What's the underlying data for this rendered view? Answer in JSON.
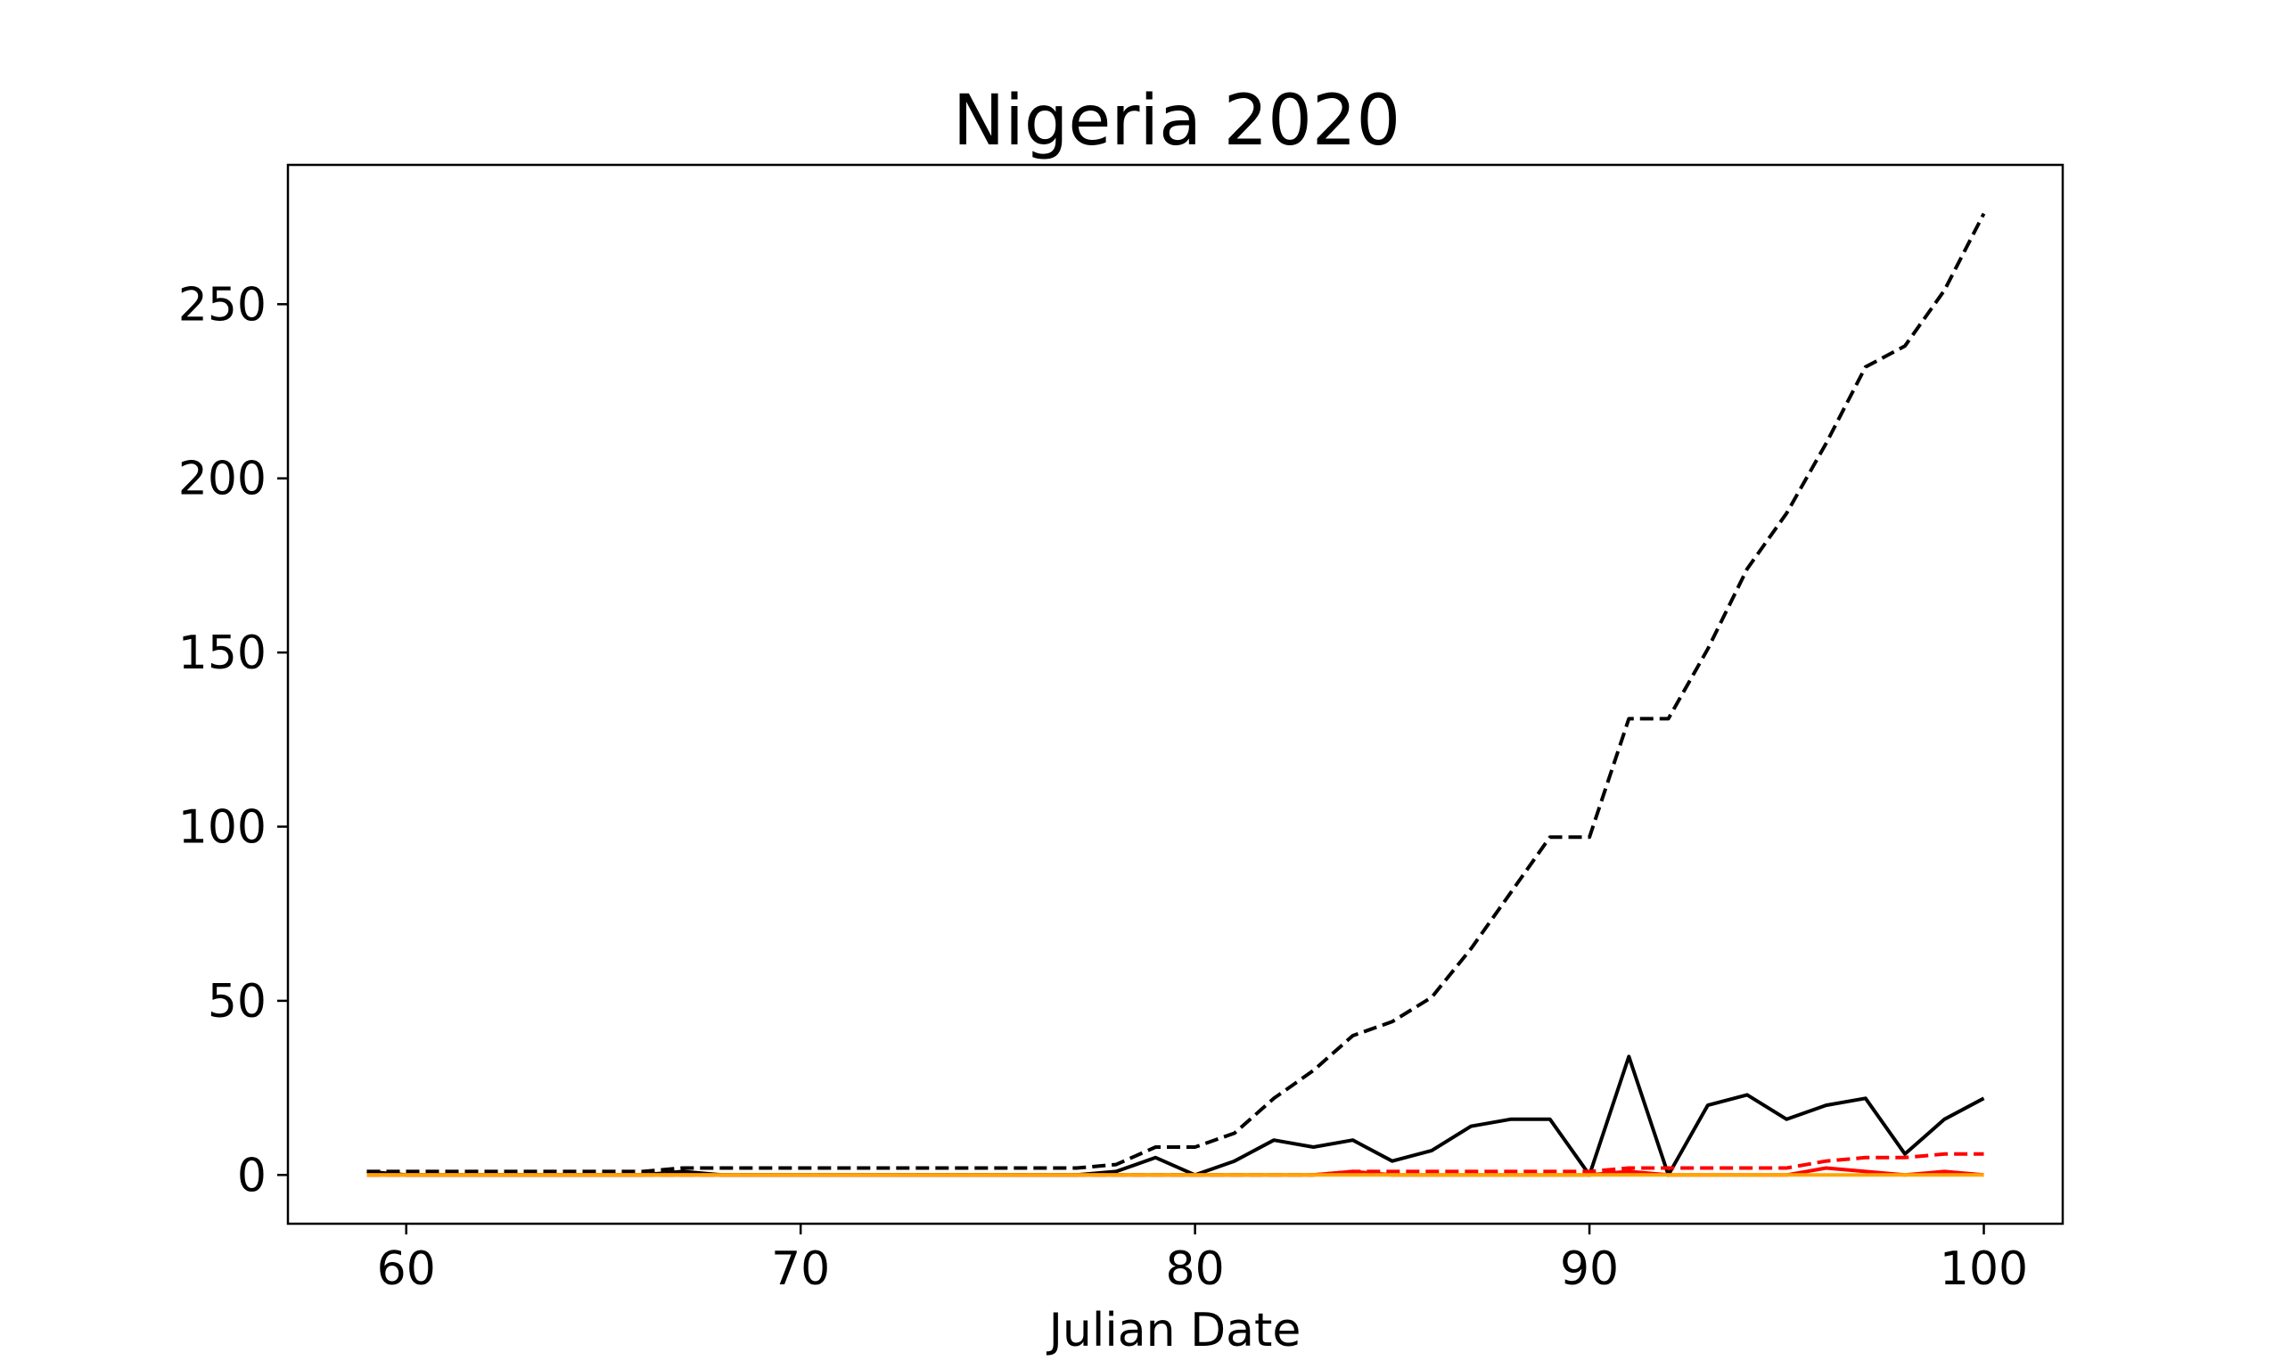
{
  "chart_data": {
    "type": "line",
    "title": "Nigeria 2020",
    "xlabel": "Julian Date",
    "ylabel": "",
    "xlim": [
      57,
      102
    ],
    "ylim": [
      -14,
      290
    ],
    "xticks": [
      60,
      70,
      80,
      90,
      100
    ],
    "yticks": [
      0,
      50,
      100,
      150,
      200,
      250
    ],
    "grid": false,
    "legend": "none",
    "x": [
      59,
      60,
      61,
      62,
      63,
      64,
      65,
      66,
      67,
      68,
      69,
      70,
      71,
      72,
      73,
      74,
      75,
      76,
      77,
      78,
      79,
      80,
      81,
      82,
      83,
      84,
      85,
      86,
      87,
      88,
      89,
      90,
      91,
      92,
      93,
      94,
      95,
      96,
      97,
      98,
      99,
      100
    ],
    "series": [
      {
        "color": "#000000",
        "style": "dashed",
        "values": [
          1,
          1,
          1,
          1,
          1,
          1,
          1,
          1,
          2,
          2,
          2,
          2,
          2,
          2,
          2,
          2,
          2,
          2,
          2,
          3,
          8,
          8,
          12,
          22,
          30,
          40,
          44,
          51,
          65,
          81,
          97,
          97,
          131,
          131,
          151,
          174,
          190,
          210,
          232,
          238,
          254,
          276
        ]
      },
      {
        "color": "#000000",
        "style": "solid",
        "values": [
          1,
          0,
          0,
          0,
          0,
          0,
          0,
          0,
          1,
          0,
          0,
          0,
          0,
          0,
          0,
          0,
          0,
          0,
          0,
          1,
          5,
          0,
          4,
          10,
          8,
          10,
          4,
          7,
          14,
          16,
          16,
          0,
          34,
          0,
          20,
          23,
          16,
          20,
          22,
          6,
          16,
          22
        ]
      },
      {
        "color": "#ff0000",
        "style": "dashed",
        "values": [
          0,
          0,
          0,
          0,
          0,
          0,
          0,
          0,
          0,
          0,
          0,
          0,
          0,
          0,
          0,
          0,
          0,
          0,
          0,
          0,
          0,
          0,
          0,
          0,
          0,
          1,
          1,
          1,
          1,
          1,
          1,
          1,
          2,
          2,
          2,
          2,
          2,
          4,
          5,
          5,
          6,
          6
        ]
      },
      {
        "color": "#ff0000",
        "style": "solid",
        "values": [
          0,
          0,
          0,
          0,
          0,
          0,
          0,
          0,
          0,
          0,
          0,
          0,
          0,
          0,
          0,
          0,
          0,
          0,
          0,
          0,
          0,
          0,
          0,
          0,
          0,
          1,
          0,
          0,
          0,
          0,
          0,
          0,
          1,
          0,
          0,
          0,
          0,
          2,
          1,
          0,
          1,
          0
        ]
      },
      {
        "color": "#ffa500",
        "style": "solid",
        "values": [
          0,
          0,
          0,
          0,
          0,
          0,
          0,
          0,
          0,
          0,
          0,
          0,
          0,
          0,
          0,
          0,
          0,
          0,
          0,
          0,
          0,
          0,
          0,
          0,
          0,
          0,
          0,
          0,
          0,
          0,
          0,
          0,
          0,
          0,
          0,
          0,
          0,
          0,
          0,
          0,
          0,
          0
        ]
      }
    ]
  }
}
